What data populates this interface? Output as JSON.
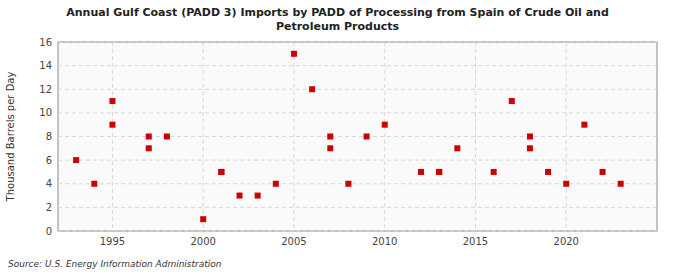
{
  "chart_data": {
    "type": "scatter",
    "title": "Annual Gulf Coast (PADD 3) Imports by PADD of Processing from Spain of Crude Oil and\nPetroleum Products",
    "y_label": "Thousand Barrels per Day",
    "annotations": [
      "Source: U.S. Energy Information Administration"
    ],
    "x": [
      1993,
      1994,
      1995,
      1995,
      1997,
      1997,
      1998,
      2000,
      2001,
      2001,
      2002,
      2003,
      2004,
      2005,
      2006,
      2007,
      2007,
      2008,
      2009,
      2010,
      2012,
      2013,
      2013,
      2014,
      2016,
      2017,
      2018,
      2018,
      2019,
      2020,
      2021,
      2022,
      2023
    ],
    "values": [
      6,
      4,
      9,
      11,
      8,
      7,
      8,
      1,
      5,
      5,
      3,
      3,
      4,
      15,
      12,
      7,
      8,
      4,
      8,
      9,
      5,
      5,
      5,
      7,
      5,
      11,
      8,
      7,
      5,
      4,
      9,
      5,
      4
    ],
    "color": "#cc0000",
    "marker": "square",
    "xlim": [
      1992,
      2025
    ],
    "ylim": [
      0,
      16
    ],
    "xticks": [
      1995,
      2000,
      2005,
      2010,
      2015,
      2020
    ],
    "yticks": [
      0,
      2,
      4,
      6,
      8,
      10,
      12,
      14,
      16
    ],
    "grid": true
  }
}
